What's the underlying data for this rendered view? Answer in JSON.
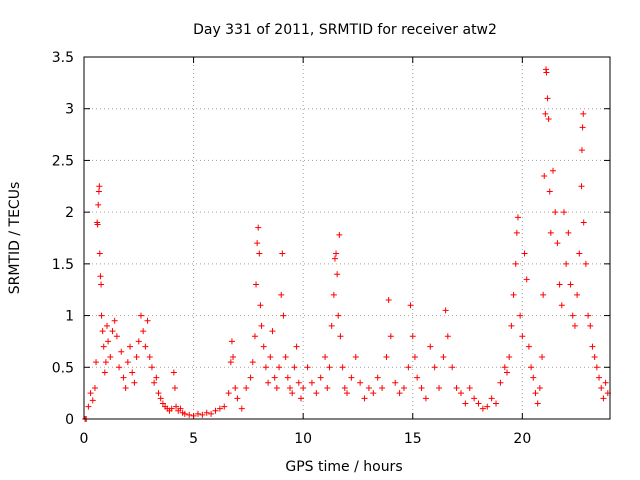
{
  "chart_data": {
    "type": "scatter",
    "title": "Day 331 of 2011, SRMTID for receiver atw2",
    "xlabel": "GPS time / hours",
    "ylabel": "SRMTID / TECUs",
    "xlim": [
      0,
      24
    ],
    "ylim": [
      0,
      3.5
    ],
    "x_ticks": [
      0,
      5,
      10,
      15,
      20
    ],
    "y_ticks": [
      0,
      0.5,
      1,
      1.5,
      2,
      2.5,
      3,
      3.5
    ],
    "x_tick_labels": [
      "0",
      "5",
      "10",
      "15",
      "20"
    ],
    "y_tick_labels": [
      "0",
      "0.5",
      "1",
      "1.5",
      "2",
      "2.5",
      "3",
      "3.5"
    ],
    "grid": true,
    "marker": "+",
    "color": "#ff0000",
    "series": [
      {
        "name": "SRMTID",
        "points": [
          [
            0.05,
            0.0
          ],
          [
            0.1,
            0.0
          ],
          [
            0.2,
            0.12
          ],
          [
            0.3,
            0.25
          ],
          [
            0.4,
            0.18
          ],
          [
            0.5,
            0.3
          ],
          [
            0.55,
            0.55
          ],
          [
            0.6,
            1.9
          ],
          [
            0.62,
            1.88
          ],
          [
            0.65,
            2.07
          ],
          [
            0.68,
            2.2
          ],
          [
            0.7,
            2.25
          ],
          [
            0.72,
            1.6
          ],
          [
            0.75,
            1.38
          ],
          [
            0.78,
            1.3
          ],
          [
            0.8,
            1.0
          ],
          [
            0.85,
            0.85
          ],
          [
            0.9,
            0.7
          ],
          [
            0.95,
            0.45
          ],
          [
            1.0,
            0.55
          ],
          [
            1.05,
            0.9
          ],
          [
            1.1,
            0.75
          ],
          [
            1.2,
            0.6
          ],
          [
            1.3,
            0.85
          ],
          [
            1.4,
            0.95
          ],
          [
            1.5,
            0.8
          ],
          [
            1.6,
            0.5
          ],
          [
            1.7,
            0.65
          ],
          [
            1.8,
            0.4
          ],
          [
            1.9,
            0.3
          ],
          [
            2.0,
            0.55
          ],
          [
            2.1,
            0.7
          ],
          [
            2.2,
            0.45
          ],
          [
            2.3,
            0.35
          ],
          [
            2.4,
            0.6
          ],
          [
            2.5,
            0.75
          ],
          [
            2.6,
            1.0
          ],
          [
            2.7,
            0.85
          ],
          [
            2.8,
            0.7
          ],
          [
            2.9,
            0.95
          ],
          [
            3.0,
            0.6
          ],
          [
            3.1,
            0.5
          ],
          [
            3.2,
            0.35
          ],
          [
            3.3,
            0.4
          ],
          [
            3.4,
            0.25
          ],
          [
            3.5,
            0.2
          ],
          [
            3.6,
            0.15
          ],
          [
            3.7,
            0.12
          ],
          [
            3.8,
            0.1
          ],
          [
            3.9,
            0.08
          ],
          [
            4.0,
            0.1
          ],
          [
            4.1,
            0.45
          ],
          [
            4.15,
            0.3
          ],
          [
            4.2,
            0.12
          ],
          [
            4.3,
            0.08
          ],
          [
            4.4,
            0.1
          ],
          [
            4.5,
            0.06
          ],
          [
            4.6,
            0.05
          ],
          [
            4.8,
            0.04
          ],
          [
            5.0,
            0.03
          ],
          [
            5.2,
            0.05
          ],
          [
            5.4,
            0.04
          ],
          [
            5.6,
            0.06
          ],
          [
            5.8,
            0.05
          ],
          [
            6.0,
            0.08
          ],
          [
            6.2,
            0.1
          ],
          [
            6.4,
            0.12
          ],
          [
            6.6,
            0.25
          ],
          [
            6.7,
            0.55
          ],
          [
            6.75,
            0.75
          ],
          [
            6.8,
            0.6
          ],
          [
            6.9,
            0.3
          ],
          [
            7.0,
            0.2
          ],
          [
            7.2,
            0.1
          ],
          [
            7.4,
            0.3
          ],
          [
            7.6,
            0.4
          ],
          [
            7.7,
            0.55
          ],
          [
            7.8,
            0.8
          ],
          [
            7.85,
            1.3
          ],
          [
            7.9,
            1.7
          ],
          [
            7.95,
            1.85
          ],
          [
            8.0,
            1.6
          ],
          [
            8.05,
            1.1
          ],
          [
            8.1,
            0.9
          ],
          [
            8.2,
            0.7
          ],
          [
            8.3,
            0.5
          ],
          [
            8.4,
            0.35
          ],
          [
            8.5,
            0.6
          ],
          [
            8.6,
            0.85
          ],
          [
            8.7,
            0.4
          ],
          [
            8.8,
            0.3
          ],
          [
            8.9,
            0.5
          ],
          [
            9.0,
            1.2
          ],
          [
            9.05,
            1.6
          ],
          [
            9.1,
            1.0
          ],
          [
            9.2,
            0.6
          ],
          [
            9.3,
            0.4
          ],
          [
            9.4,
            0.3
          ],
          [
            9.5,
            0.25
          ],
          [
            9.6,
            0.5
          ],
          [
            9.7,
            0.7
          ],
          [
            9.8,
            0.35
          ],
          [
            9.9,
            0.2
          ],
          [
            10.0,
            0.3
          ],
          [
            10.2,
            0.5
          ],
          [
            10.4,
            0.35
          ],
          [
            10.6,
            0.25
          ],
          [
            10.8,
            0.4
          ],
          [
            11.0,
            0.6
          ],
          [
            11.1,
            0.3
          ],
          [
            11.2,
            0.5
          ],
          [
            11.3,
            0.9
          ],
          [
            11.4,
            1.2
          ],
          [
            11.45,
            1.55
          ],
          [
            11.5,
            1.6
          ],
          [
            11.55,
            1.4
          ],
          [
            11.6,
            1.0
          ],
          [
            11.65,
            1.78
          ],
          [
            11.7,
            0.8
          ],
          [
            11.8,
            0.5
          ],
          [
            11.9,
            0.3
          ],
          [
            12.0,
            0.25
          ],
          [
            12.2,
            0.4
          ],
          [
            12.4,
            0.6
          ],
          [
            12.6,
            0.35
          ],
          [
            12.8,
            0.2
          ],
          [
            13.0,
            0.3
          ],
          [
            13.2,
            0.25
          ],
          [
            13.4,
            0.4
          ],
          [
            13.6,
            0.3
          ],
          [
            13.8,
            0.6
          ],
          [
            13.9,
            1.15
          ],
          [
            14.0,
            0.8
          ],
          [
            14.2,
            0.35
          ],
          [
            14.4,
            0.25
          ],
          [
            14.6,
            0.3
          ],
          [
            14.8,
            0.5
          ],
          [
            14.9,
            1.1
          ],
          [
            15.0,
            0.8
          ],
          [
            15.1,
            0.6
          ],
          [
            15.2,
            0.4
          ],
          [
            15.4,
            0.3
          ],
          [
            15.6,
            0.2
          ],
          [
            15.8,
            0.7
          ],
          [
            16.0,
            0.5
          ],
          [
            16.2,
            0.3
          ],
          [
            16.4,
            0.6
          ],
          [
            16.5,
            1.05
          ],
          [
            16.6,
            0.8
          ],
          [
            16.8,
            0.5
          ],
          [
            17.0,
            0.3
          ],
          [
            17.2,
            0.25
          ],
          [
            17.4,
            0.15
          ],
          [
            17.6,
            0.3
          ],
          [
            17.8,
            0.2
          ],
          [
            18.0,
            0.15
          ],
          [
            18.2,
            0.1
          ],
          [
            18.4,
            0.12
          ],
          [
            18.6,
            0.2
          ],
          [
            18.8,
            0.15
          ],
          [
            19.0,
            0.35
          ],
          [
            19.2,
            0.5
          ],
          [
            19.3,
            0.45
          ],
          [
            19.4,
            0.6
          ],
          [
            19.5,
            0.9
          ],
          [
            19.6,
            1.2
          ],
          [
            19.7,
            1.5
          ],
          [
            19.75,
            1.8
          ],
          [
            19.8,
            1.95
          ],
          [
            19.9,
            1.0
          ],
          [
            20.0,
            0.8
          ],
          [
            20.1,
            1.6
          ],
          [
            20.2,
            1.35
          ],
          [
            20.3,
            0.7
          ],
          [
            20.4,
            0.5
          ],
          [
            20.5,
            0.4
          ],
          [
            20.6,
            0.25
          ],
          [
            20.7,
            0.15
          ],
          [
            20.8,
            0.3
          ],
          [
            20.9,
            0.6
          ],
          [
            20.95,
            1.2
          ],
          [
            21.0,
            2.35
          ],
          [
            21.05,
            2.95
          ],
          [
            21.08,
            3.38
          ],
          [
            21.1,
            3.35
          ],
          [
            21.15,
            3.1
          ],
          [
            21.2,
            2.9
          ],
          [
            21.25,
            2.2
          ],
          [
            21.3,
            1.8
          ],
          [
            21.4,
            2.4
          ],
          [
            21.5,
            2.0
          ],
          [
            21.6,
            1.7
          ],
          [
            21.7,
            1.3
          ],
          [
            21.8,
            1.1
          ],
          [
            21.9,
            2.0
          ],
          [
            22.0,
            1.5
          ],
          [
            22.1,
            1.8
          ],
          [
            22.2,
            1.3
          ],
          [
            22.3,
            1.0
          ],
          [
            22.4,
            0.9
          ],
          [
            22.5,
            1.2
          ],
          [
            22.6,
            1.6
          ],
          [
            22.7,
            2.25
          ],
          [
            22.72,
            2.6
          ],
          [
            22.75,
            2.82
          ],
          [
            22.78,
            2.95
          ],
          [
            22.8,
            1.9
          ],
          [
            22.9,
            1.5
          ],
          [
            23.0,
            1.0
          ],
          [
            23.1,
            0.9
          ],
          [
            23.2,
            0.7
          ],
          [
            23.3,
            0.6
          ],
          [
            23.4,
            0.5
          ],
          [
            23.5,
            0.4
          ],
          [
            23.6,
            0.3
          ],
          [
            23.7,
            0.2
          ],
          [
            23.8,
            0.35
          ],
          [
            23.9,
            0.25
          ]
        ]
      }
    ]
  }
}
